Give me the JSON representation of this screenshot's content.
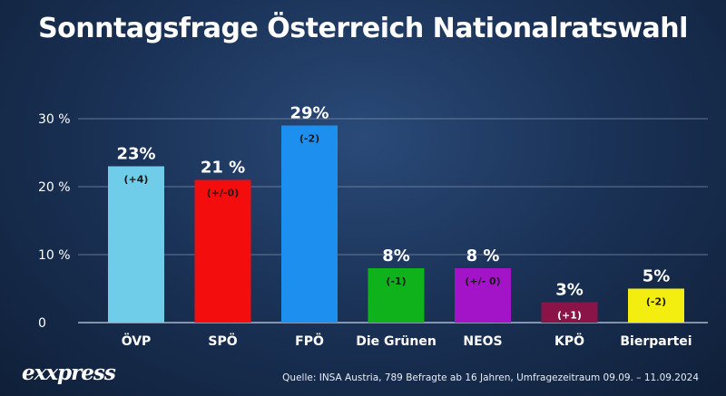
{
  "chart_data": {
    "type": "bar",
    "title": "Sonntagsfrage Österreich Nationalratswahl",
    "categories": [
      "ÖVP",
      "SPÖ",
      "FPÖ",
      "Die Grünen",
      "NEOS",
      "KPÖ",
      "Bierpartei"
    ],
    "values": [
      23,
      21,
      29,
      8,
      8,
      3,
      5
    ],
    "value_labels": [
      "23%",
      "21 %",
      "29%",
      "8%",
      "8 %",
      "3%",
      "5%"
    ],
    "change_labels": [
      "(+4)",
      "(+/-0)",
      "(-2)",
      "(-1)",
      "(+/- 0)",
      "(+1)",
      "(-2)"
    ],
    "colors": [
      "#6fcde9",
      "#f40d0d",
      "#1c8fef",
      "#10b21c",
      "#a314c8",
      "#8a1448",
      "#f4ee10"
    ],
    "change_label_colors": [
      "#1a1a1a",
      "#1a1a1a",
      "#1a1a1a",
      "#1a1a1a",
      "#1a1a1a",
      "#ffffff",
      "#1a1a1a"
    ],
    "ylim": [
      0,
      30
    ],
    "yticks": [
      0,
      10,
      20,
      30
    ],
    "ytick_labels": [
      "0",
      "10 %",
      "20 %",
      "30 %"
    ],
    "grid": true,
    "legend": "none"
  },
  "footer": {
    "logo": "exxpress",
    "source": "Quelle: INSA Austria, 789 Befragte ab 16 Jahren, Umfragezeitraum 09.09. – 11.09.2024"
  }
}
